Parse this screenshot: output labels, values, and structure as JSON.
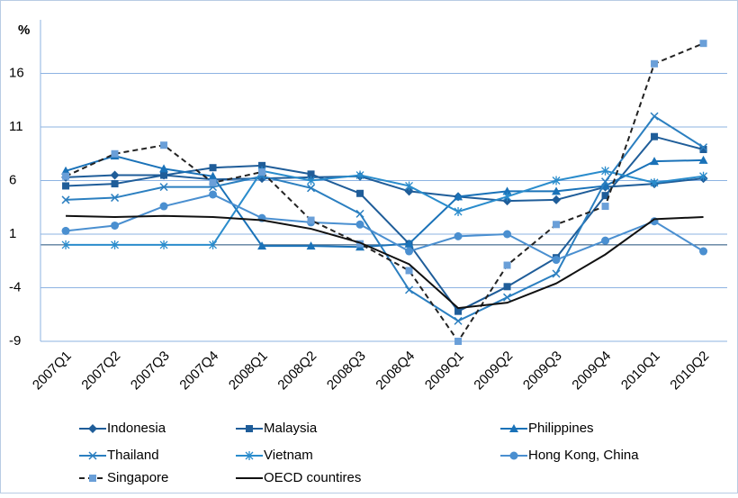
{
  "chart_data": {
    "type": "line",
    "y_label": "%",
    "categories": [
      "2007Q1",
      "2007Q2",
      "2007Q3",
      "2007Q4",
      "2008Q1",
      "2008Q2",
      "2008Q3",
      "2008Q4",
      "2009Q1",
      "2009Q2",
      "2009Q3",
      "2009Q4",
      "2010Q1",
      "2010Q2"
    ],
    "ylim": [
      -9,
      21
    ],
    "yticks": [
      -9,
      -4,
      1,
      6,
      11,
      16
    ],
    "grid": true,
    "series": [
      {
        "name": "Indonesia",
        "color": "#1f5d99",
        "marker": "diamond",
        "dash": false,
        "values": [
          6.3,
          6.5,
          6.5,
          6.1,
          6.2,
          6.3,
          6.4,
          5.0,
          4.5,
          4.1,
          4.2,
          5.4,
          5.7,
          6.2
        ]
      },
      {
        "name": "Malaysia",
        "color": "#1f5d99",
        "marker": "square",
        "dash": false,
        "values": [
          5.5,
          5.7,
          6.5,
          7.2,
          7.4,
          6.6,
          4.8,
          0.1,
          -6.2,
          -3.9,
          -1.2,
          4.6,
          10.1,
          8.9
        ]
      },
      {
        "name": "Philippines",
        "color": "#1a72b8",
        "marker": "triangle",
        "dash": false,
        "values": [
          6.9,
          8.3,
          7.1,
          6.4,
          -0.1,
          -0.1,
          -0.2,
          0.1,
          4.5,
          5.0,
          5.0,
          5.5,
          7.8,
          7.9
        ]
      },
      {
        "name": "Thailand",
        "color": "#2b7fc0",
        "marker": "x",
        "dash": false,
        "values": [
          4.2,
          4.4,
          5.4,
          5.4,
          6.4,
          5.3,
          2.9,
          -4.2,
          -7.1,
          -4.9,
          -2.7,
          5.9,
          12.0,
          9.1
        ]
      },
      {
        "name": "Vietnam",
        "color": "#2a8ccc",
        "marker": "star",
        "dash": false,
        "values": [
          0,
          0,
          0,
          0,
          6.9,
          6.0,
          6.5,
          5.5,
          3.1,
          4.5,
          6.0,
          6.9,
          5.8,
          6.4
        ]
      },
      {
        "name": "Hong Kong, China",
        "color": "#4a8fd0",
        "marker": "circle",
        "dash": false,
        "values": [
          1.3,
          1.8,
          3.6,
          4.7,
          2.5,
          2.1,
          1.9,
          -0.6,
          0.8,
          1.0,
          -1.4,
          0.4,
          2.2,
          -0.6
        ]
      },
      {
        "name": "Singapore",
        "color": "#6a9fd8",
        "marker": "square",
        "dash": true,
        "values": [
          6.4,
          8.5,
          9.3,
          5.8,
          6.8,
          2.3,
          0.1,
          -2.4,
          -9.0,
          -1.9,
          1.9,
          3.6,
          16.9,
          18.8
        ]
      },
      {
        "name": "OECD countires",
        "color": "#111111",
        "marker": "none",
        "dash": false,
        "values": [
          2.7,
          2.6,
          2.7,
          2.6,
          2.3,
          1.5,
          0.2,
          -1.8,
          -5.9,
          -5.4,
          -3.6,
          -0.9,
          2.4,
          2.6
        ]
      }
    ]
  }
}
